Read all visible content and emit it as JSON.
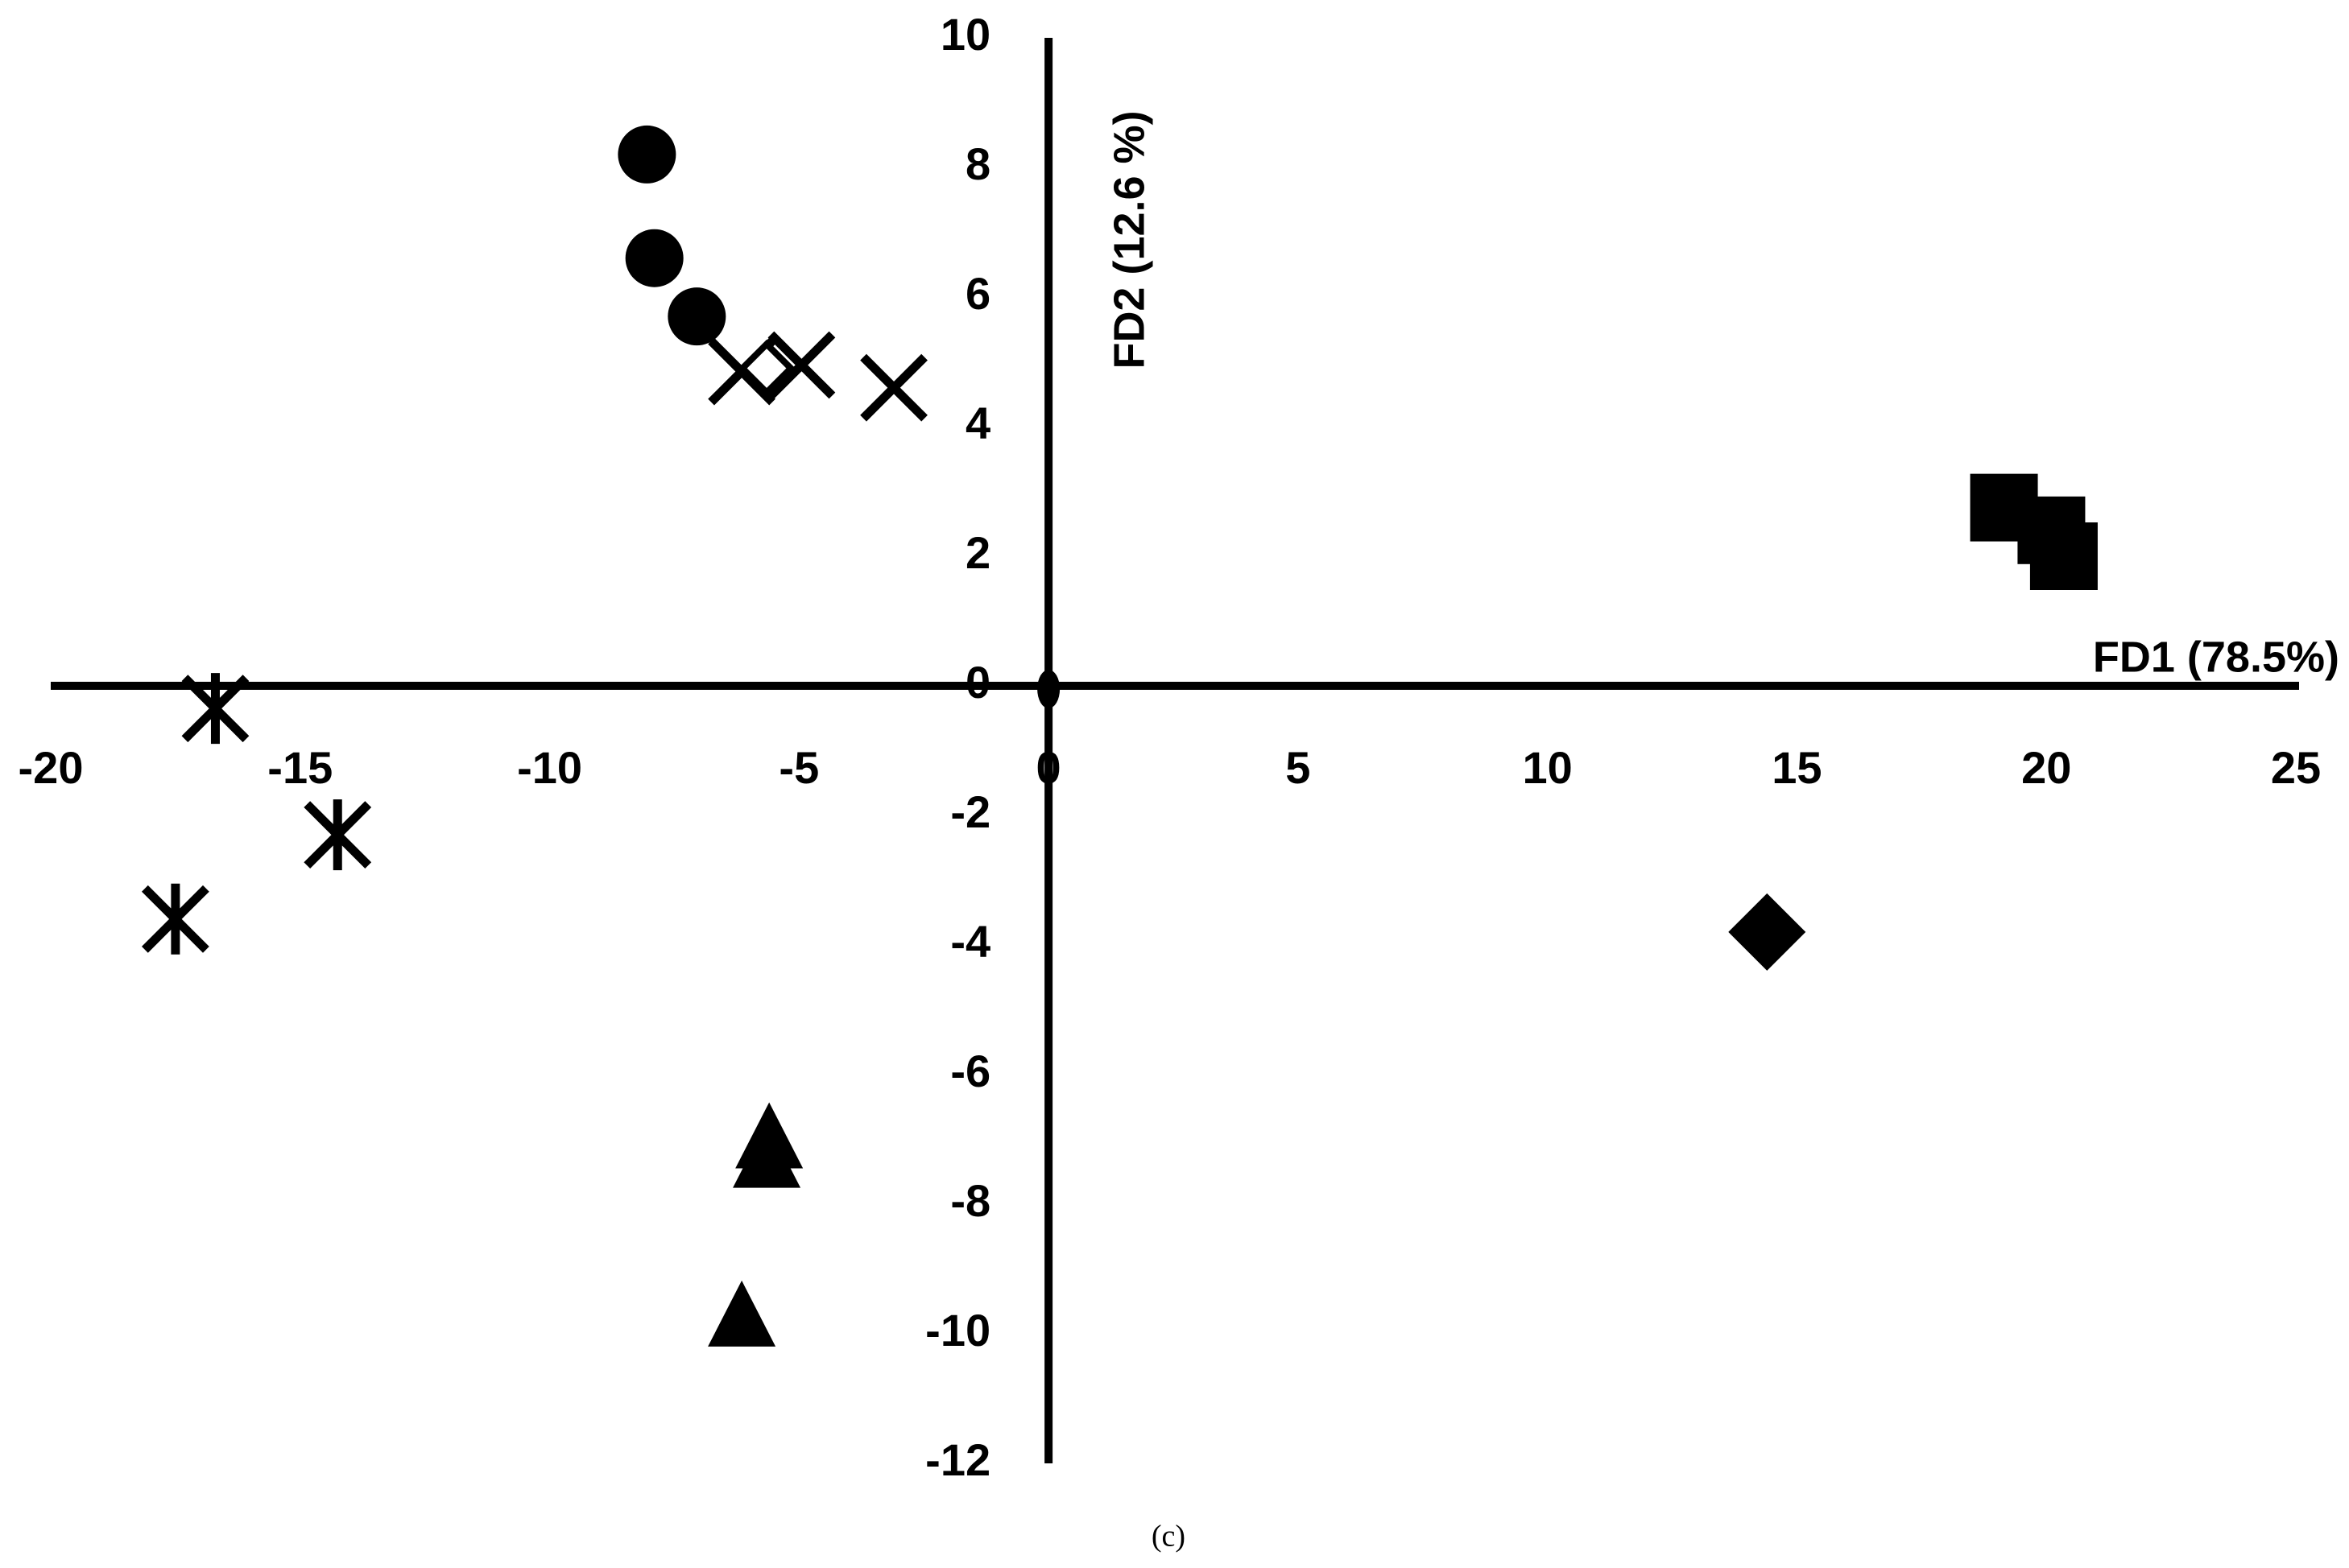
{
  "chart_data": {
    "type": "scatter",
    "x_label": "FD1 (78.5%)",
    "y_label": "FD2 (12.6 %)",
    "caption": "(c)",
    "xlim": [
      -20,
      25
    ],
    "xticks": [
      -20,
      -15,
      -10,
      -5,
      0,
      5,
      10,
      15,
      20,
      25
    ],
    "ylim": [
      -12,
      10
    ],
    "yticks": [
      -12,
      -10,
      -8,
      -6,
      -4,
      -2,
      0,
      2,
      4,
      6,
      8,
      10
    ],
    "series": [
      {
        "marker": "circle",
        "color": "#000000",
        "x": [
          -8.05,
          -7.9,
          -7.05
        ],
        "values": [
          8.2,
          6.6,
          5.7
        ]
      },
      {
        "marker": "cross",
        "color": "#000000",
        "x": [
          -6.15,
          -4.95,
          -3.1
        ],
        "values": [
          4.85,
          4.95,
          4.6
        ]
      },
      {
        "marker": "open-diamond",
        "color": "#000000",
        "x": [
          -5.65
        ],
        "values": [
          4.9
        ]
      },
      {
        "marker": "asterisk",
        "color": "#000000",
        "x": [
          -16.7,
          -14.25,
          -17.5
        ],
        "values": [
          -0.35,
          -2.3,
          -3.6
        ]
      },
      {
        "marker": "ellipse",
        "color": "#000000",
        "x": [
          0
        ],
        "values": [
          0
        ]
      },
      {
        "marker": "square",
        "color": "#000000",
        "x": [
          19.15,
          20.1,
          20.35
        ],
        "values": [
          2.75,
          2.4,
          2.0
        ]
      },
      {
        "marker": "diamond",
        "color": "#000000",
        "x": [
          14.4
        ],
        "values": [
          -3.8
        ]
      },
      {
        "marker": "triangle",
        "color": "#000000",
        "x": [
          -5.6,
          -5.65,
          -6.15
        ],
        "values": [
          -7.0,
          -7.3,
          -9.75
        ]
      }
    ]
  }
}
